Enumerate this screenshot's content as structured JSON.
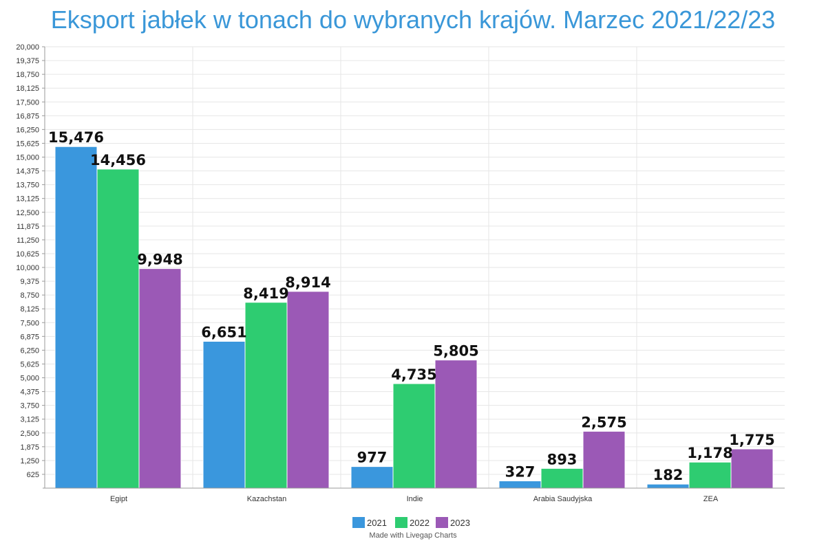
{
  "chart_data": {
    "type": "bar",
    "title": "Eksport jabłek w tonach do wybranych krajów. Marzec 2021/22/23",
    "categories": [
      "Egipt",
      "Kazachstan",
      "Indie",
      "Arabia Saudyjska",
      "ZEA"
    ],
    "series": [
      {
        "name": "2021",
        "color": "#3a97dd",
        "values": [
          15476,
          6651,
          977,
          327,
          182
        ],
        "labels": [
          "15,476",
          "6,651",
          "977",
          "327",
          "182"
        ]
      },
      {
        "name": "2022",
        "color": "#2ecc71",
        "values": [
          14456,
          8419,
          4735,
          893,
          1178
        ],
        "labels": [
          "14,456",
          "8,419",
          "4,735",
          "893",
          "1,178"
        ]
      },
      {
        "name": "2023",
        "color": "#9b59b6",
        "values": [
          9948,
          8914,
          5805,
          2575,
          1775
        ],
        "labels": [
          "9,948",
          "8,914",
          "5,805",
          "2,575",
          "1,775"
        ]
      }
    ],
    "ylim": [
      0,
      20000
    ],
    "yticks": [
      "625",
      "1,250",
      "1,875",
      "2,500",
      "3,125",
      "3,750",
      "4,375",
      "5,000",
      "5,625",
      "6,250",
      "6,875",
      "7,500",
      "8,125",
      "8,750",
      "9,375",
      "10,000",
      "10,625",
      "11,250",
      "11,875",
      "12,500",
      "13,125",
      "13,750",
      "14,375",
      "15,000",
      "15,625",
      "16,250",
      "16,875",
      "17,500",
      "18,125",
      "18,750",
      "19,375",
      "20,000"
    ],
    "xlabel": "",
    "ylabel": "",
    "legend_position": "bottom-center",
    "grid": true
  },
  "credit": "Made with Livegap Charts"
}
